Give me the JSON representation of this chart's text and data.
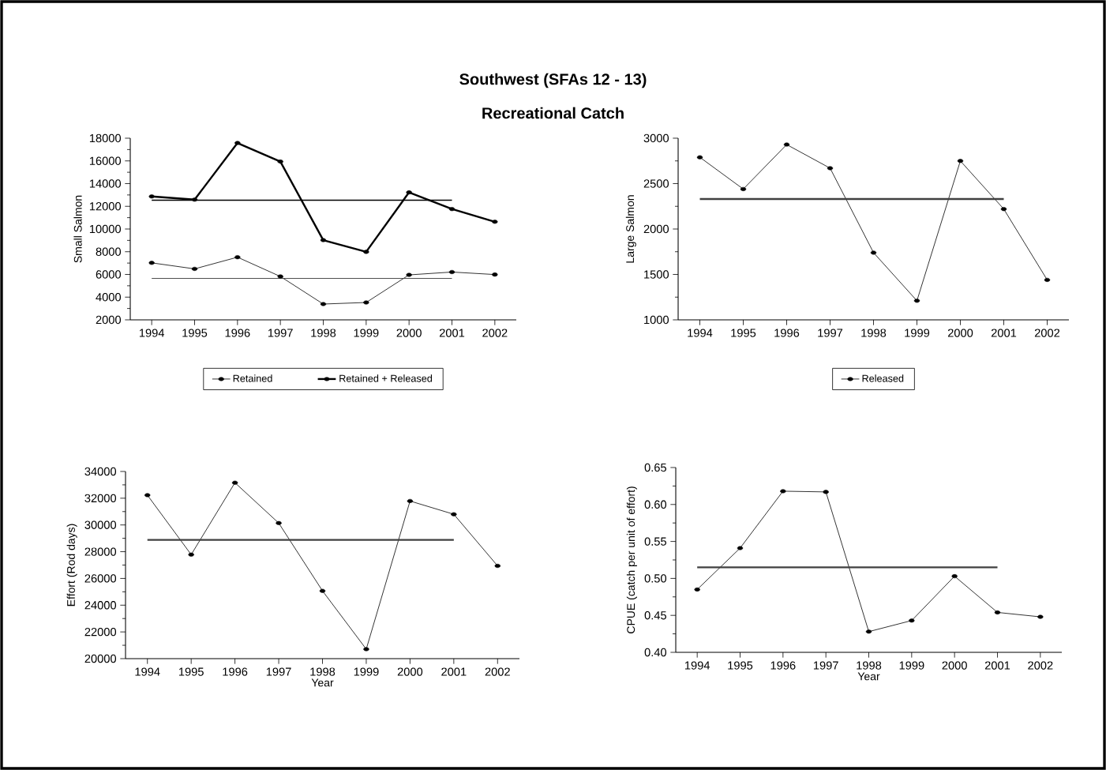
{
  "chart_data": [
    {
      "type": "line",
      "title": "Southwest (SFAs 12 - 13)",
      "subtitle": "Recreational Catch",
      "ylabel": "Small Salmon",
      "categories": [
        "1994",
        "1995",
        "1996",
        "1997",
        "1998",
        "1999",
        "2000",
        "2001",
        "2002"
      ],
      "series": [
        {
          "name": "Retained",
          "color": "#000000",
          "values": [
            7020,
            6490,
            7520,
            5820,
            3390,
            3530,
            5960,
            6210,
            5990
          ]
        },
        {
          "name": "Retained + Released",
          "color": "#000000",
          "values": [
            12870,
            12590,
            17580,
            15940,
            9020,
            7990,
            13230,
            11760,
            10640
          ]
        },
        {
          "color": "#404040",
          "marker": "none",
          "values": [
            5650,
            5650,
            5650,
            5650,
            5650,
            5650,
            5650,
            5650,
            null
          ]
        },
        {
          "color": "#000000",
          "marker": "none",
          "values": [
            12540,
            12540,
            12540,
            12540,
            12540,
            12540,
            12540,
            12540,
            null
          ]
        }
      ],
      "ylim": [
        2000,
        18000
      ],
      "yticks": [
        2000,
        4000,
        6000,
        8000,
        10000,
        12000,
        14000,
        16000,
        18000
      ],
      "marker": "circle",
      "legend": "bottom"
    },
    {
      "type": "line",
      "ylabel": "Large Salmon",
      "categories": [
        "1994",
        "1995",
        "1996",
        "1997",
        "1998",
        "1999",
        "2000",
        "2001",
        "2002"
      ],
      "series": [
        {
          "name": "Released",
          "color": "#000000",
          "values": [
            2790,
            2440,
            2930,
            2670,
            1740,
            1210,
            2750,
            2220,
            1440
          ]
        },
        {
          "color": "#404040",
          "marker": "none",
          "values": [
            2330,
            2330,
            2330,
            2330,
            2330,
            2330,
            2330,
            2330,
            null
          ]
        }
      ],
      "ylim": [
        1000,
        3000
      ],
      "yticks": [
        1000,
        1500,
        2000,
        2500,
        3000
      ],
      "marker": "circle",
      "legend": "bottom"
    },
    {
      "type": "line",
      "xlabel": "Year",
      "ylabel": "Effort (Rod days)",
      "categories": [
        "1994",
        "1995",
        "1996",
        "1997",
        "1998",
        "1999",
        "2000",
        "2001",
        "2002"
      ],
      "series": [
        {
          "color": "#000000",
          "values": [
            32230,
            27780,
            33160,
            30140,
            25070,
            20710,
            31790,
            30800,
            26940
          ]
        },
        {
          "color": "#404040",
          "marker": "none",
          "values": [
            28880,
            28880,
            28880,
            28880,
            28880,
            28880,
            28880,
            28880,
            null
          ]
        }
      ],
      "ylim": [
        20000,
        34000
      ],
      "yticks": [
        20000,
        22000,
        24000,
        26000,
        28000,
        30000,
        32000,
        34000
      ],
      "marker": "circle"
    },
    {
      "type": "line",
      "xlabel": "Year",
      "ylabel": "CPUE (catch per unit of effort)",
      "categories": [
        "1994",
        "1995",
        "1996",
        "1997",
        "1998",
        "1999",
        "2000",
        "2001",
        "2002"
      ],
      "series": [
        {
          "color": "#000000",
          "values": [
            0.485,
            0.541,
            0.618,
            0.617,
            0.428,
            0.443,
            0.503,
            0.454,
            0.448
          ]
        },
        {
          "color": "#404040",
          "marker": "none",
          "values": [
            0.515,
            0.515,
            0.515,
            0.515,
            0.515,
            0.515,
            0.515,
            0.515,
            null
          ]
        }
      ],
      "ylim": [
        0.4,
        0.65
      ],
      "yticks": [
        {
          "value": 0.4,
          "label": "0.40"
        },
        {
          "value": 0.45,
          "label": "0.45"
        },
        {
          "value": 0.5,
          "label": "0.50"
        },
        {
          "value": 0.55,
          "label": "0.55"
        },
        {
          "value": 0.6,
          "label": "0.60"
        },
        {
          "value": 0.65,
          "label": "0.65"
        }
      ],
      "marker": "circle"
    }
  ]
}
